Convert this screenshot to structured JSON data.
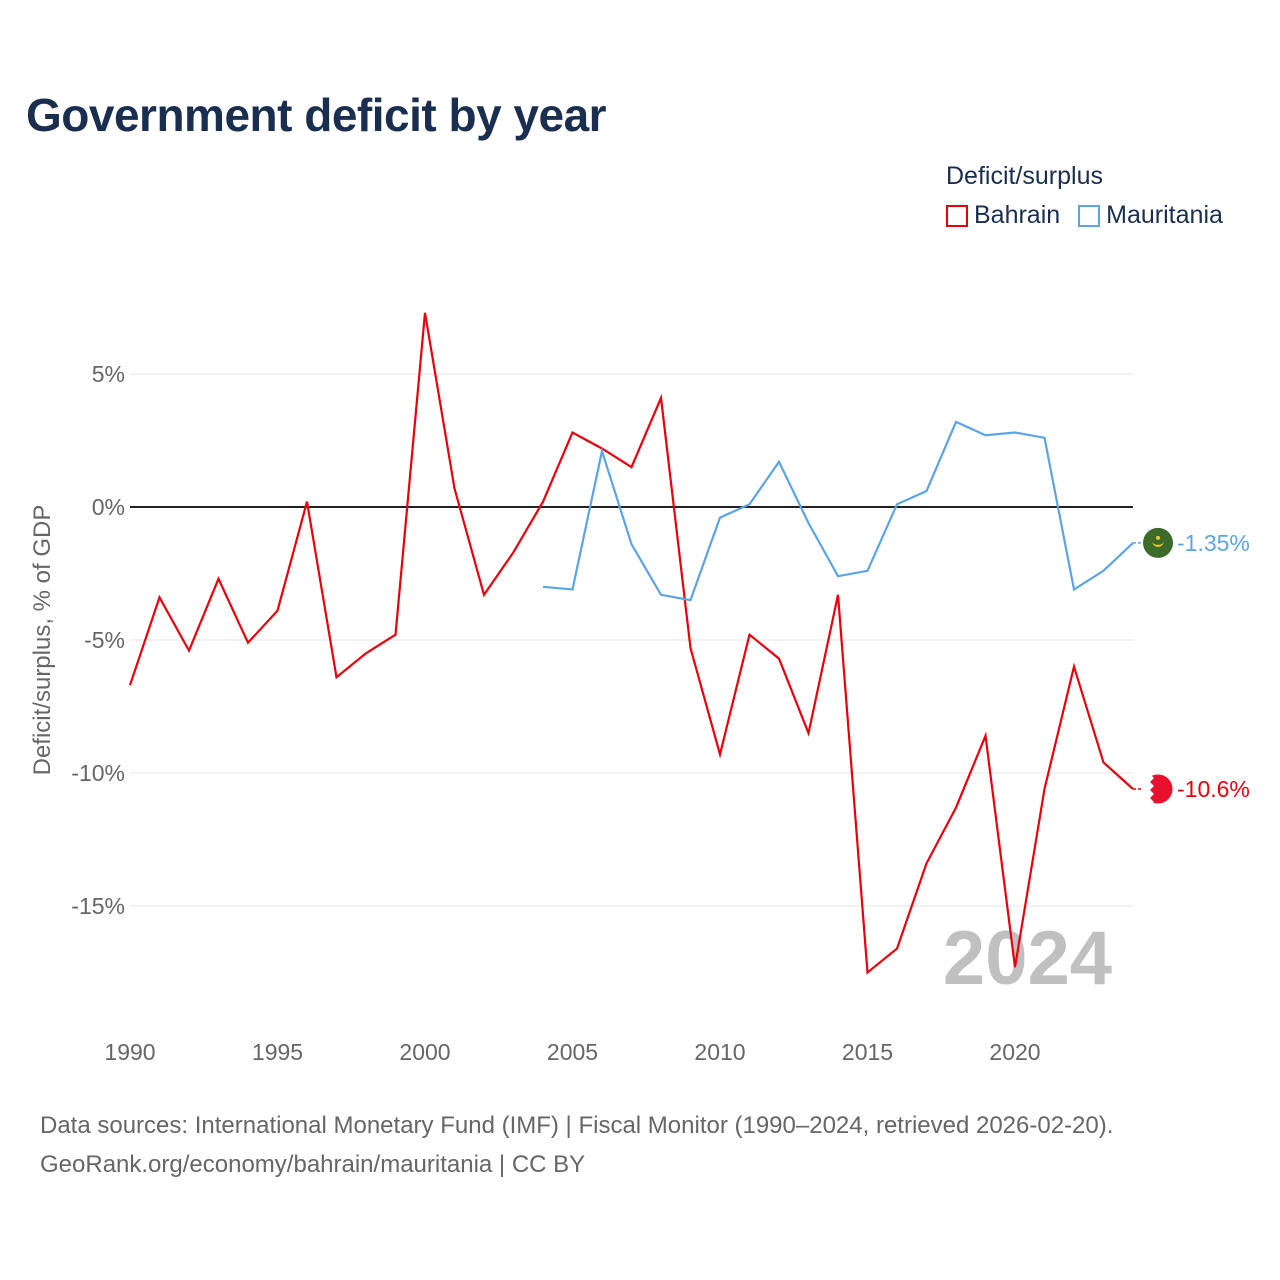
{
  "chart_data": {
    "type": "line",
    "title": "Government deficit by year",
    "xlabel": "",
    "ylabel": "Deficit/surplus, % of GDP",
    "xlim": [
      1990,
      2024
    ],
    "ylim": [
      -18.5,
      8
    ],
    "x_ticks": [
      1990,
      1995,
      2000,
      2005,
      2010,
      2015,
      2020
    ],
    "x_tick_labels": [
      "1990",
      "1995",
      "2000",
      "2005",
      "2010",
      "2015",
      "2020"
    ],
    "y_ticks": [
      5,
      0,
      -5,
      -10,
      -15
    ],
    "y_tick_labels": [
      "5%",
      "0%",
      "-5%",
      "-10%",
      "-15%"
    ],
    "legend_title": "Deficit/surplus",
    "legend_position": "top-right",
    "year_watermark": "2024",
    "series": [
      {
        "name": "Bahrain",
        "color": "#e8000b",
        "end_label": "-10.6%",
        "x": [
          1990,
          1991,
          1992,
          1993,
          1994,
          1995,
          1996,
          1997,
          1998,
          1999,
          2000,
          2001,
          2002,
          2003,
          2004,
          2005,
          2006,
          2007,
          2008,
          2009,
          2010,
          2011,
          2012,
          2013,
          2014,
          2015,
          2016,
          2017,
          2018,
          2019,
          2020,
          2021,
          2022,
          2023,
          2024
        ],
        "values": [
          -6.7,
          -3.4,
          -5.4,
          -2.7,
          -5.1,
          -3.9,
          0.2,
          -6.4,
          -5.5,
          -4.8,
          7.3,
          0.7,
          -3.3,
          -1.7,
          0.2,
          2.8,
          2.2,
          1.5,
          4.1,
          -5.3,
          -9.3,
          -4.8,
          -5.7,
          -8.5,
          -3.3,
          -17.5,
          -16.6,
          -13.4,
          -11.3,
          -8.6,
          -17.3,
          -10.6,
          -6.0,
          -9.6,
          -10.6
        ],
        "flag_icon": "bahrain-flag-icon"
      },
      {
        "name": "Mauritania",
        "color": "#5ba4e6",
        "end_label": "-1.35%",
        "x": [
          2004,
          2005,
          2006,
          2007,
          2008,
          2009,
          2010,
          2011,
          2012,
          2013,
          2014,
          2015,
          2016,
          2017,
          2018,
          2019,
          2020,
          2021,
          2022,
          2023,
          2024
        ],
        "values": [
          -3.0,
          -3.1,
          2.1,
          -1.4,
          -3.3,
          -3.5,
          -0.4,
          0.1,
          1.7,
          -0.6,
          -2.6,
          -2.4,
          0.1,
          0.6,
          3.2,
          2.7,
          2.8,
          2.6,
          -3.1,
          -2.4,
          -1.35
        ],
        "flag_icon": "mauritania-flag-icon"
      }
    ]
  },
  "footer": {
    "sources_line": "Data sources: International Monetary Fund (IMF) | Fiscal Monitor (1990–2024, retrieved 2026-02-20).",
    "credit_line": "GeoRank.org/economy/bahrain/mauritania | CC BY"
  }
}
